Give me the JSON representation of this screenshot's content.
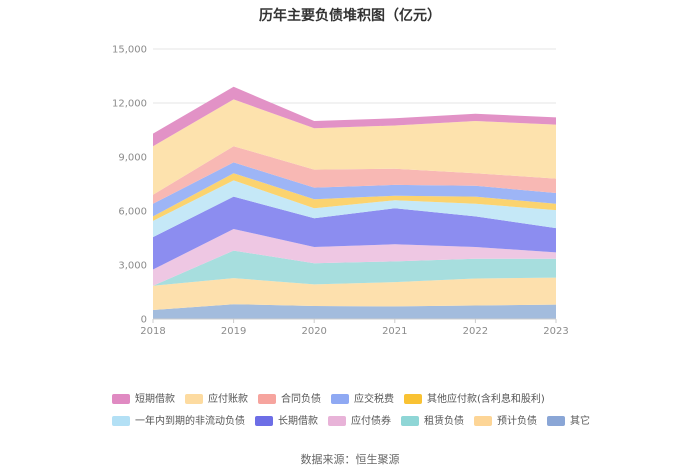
{
  "title": "历年主要负债堆积图（亿元）",
  "source": "数据来源：恒生聚源",
  "colors": {
    "短期借款": "#e292c6",
    "应付账款": "#fde2ad",
    "合同负债": "#f8b8b4",
    "应交税费": "#9db5f6",
    "其他应付款(含利息和股利)": "#fbd36f",
    "一年内到期的非流动负债": "#c5e8f7",
    "长期借款": "#8c8df0",
    "应付债券": "#eec7e3",
    "租赁负债": "#a7dede",
    "预计负债": "#fde0ad",
    "其它": "#a3bcdd"
  },
  "legend_rows": [
    [
      "短期借款",
      "应付账款",
      "合同负债",
      "应交税费",
      "其他应付款(含利息和股利)"
    ],
    [
      "一年内到期的非流动负债",
      "长期借款",
      "应付债券",
      "租赁负债",
      "预计负债",
      "其它"
    ]
  ],
  "legend_swatch_colors": {
    "短期借款": "#e08ac2",
    "应付账款": "#fddba0",
    "合同负债": "#f6a49e",
    "应交税费": "#8fa9f3",
    "其他应付款(含利息和股利)": "#f9c233",
    "一年内到期的非流动负债": "#b3e0f5",
    "长期借款": "#6d6ee6",
    "应付债券": "#e8b3d8",
    "租赁负债": "#8fd6d6",
    "预计负债": "#fdd596",
    "其它": "#8aa6d6"
  },
  "chart_data": {
    "type": "area",
    "stacked": true,
    "x": [
      "2018",
      "2019",
      "2020",
      "2021",
      "2022",
      "2023"
    ],
    "ylim": [
      0,
      15000
    ],
    "yticks": [
      "0",
      "3,000",
      "6,000",
      "9,000",
      "12,000",
      "15,000"
    ],
    "grid": true,
    "legend_position": "bottom",
    "series": [
      {
        "name": "其它",
        "values": [
          500,
          820,
          720,
          700,
          750,
          800
        ]
      },
      {
        "name": "预计负债",
        "values": [
          1350,
          1450,
          1200,
          1350,
          1500,
          1500
        ]
      },
      {
        "name": "租赁负债",
        "values": [
          0,
          1530,
          1180,
          1150,
          1100,
          1050
        ]
      },
      {
        "name": "应付债券",
        "values": [
          900,
          1200,
          900,
          950,
          650,
          350
        ]
      },
      {
        "name": "长期借款",
        "values": [
          1800,
          1800,
          1600,
          2000,
          1700,
          1350
        ]
      },
      {
        "name": "一年内到期的非流动负债",
        "values": [
          900,
          900,
          550,
          450,
          700,
          1000
        ]
      },
      {
        "name": "其他应付款(含利息和股利)",
        "values": [
          250,
          400,
          500,
          250,
          400,
          350
        ]
      },
      {
        "name": "应交税费",
        "values": [
          700,
          600,
          650,
          600,
          600,
          600
        ]
      },
      {
        "name": "合同负债",
        "values": [
          500,
          900,
          1000,
          900,
          700,
          800
        ]
      },
      {
        "name": "应付账款",
        "values": [
          2700,
          2600,
          2300,
          2400,
          2900,
          3000
        ]
      },
      {
        "name": "短期借款",
        "values": [
          700,
          700,
          400,
          400,
          400,
          400
        ]
      }
    ]
  }
}
